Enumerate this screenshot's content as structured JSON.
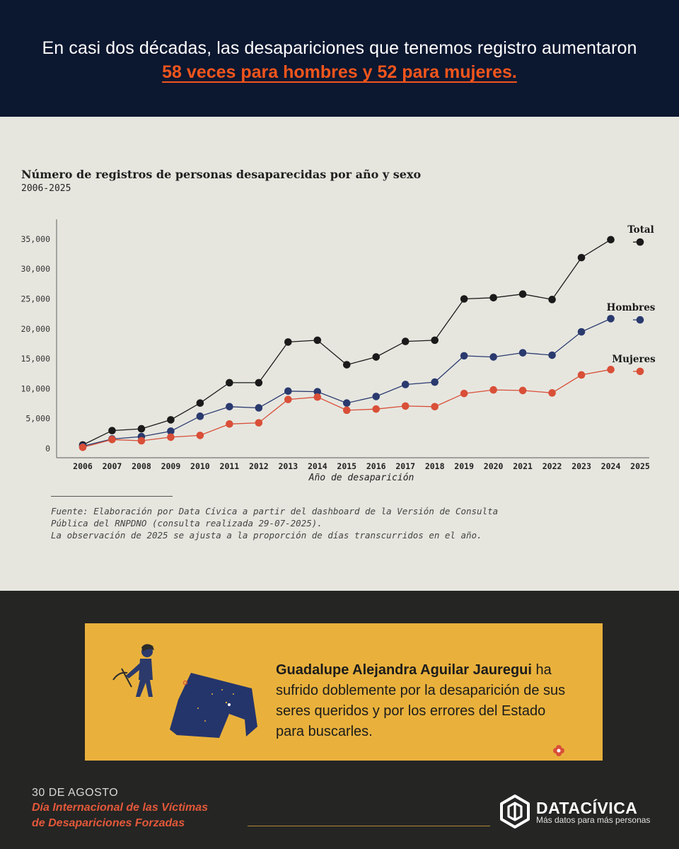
{
  "header": {
    "line1": "En casi dos décadas, las desapariciones que tenemos registro aumentaron",
    "line2": "58 veces para hombres y 52 para mujeres."
  },
  "chart_data": {
    "type": "line",
    "title": "Número de registros de personas desaparecidas por año y sexo",
    "subtitle": "2006-2025",
    "xlabel": "Año de desaparición",
    "ylabel": "",
    "ylim": [
      0,
      37000
    ],
    "yticks": [
      "0",
      "5,000",
      "10,000",
      "15,000",
      "20,000",
      "25,000",
      "30,000",
      "35,000"
    ],
    "ytick_values": [
      0,
      5000,
      10000,
      15000,
      20000,
      25000,
      30000,
      35000
    ],
    "grid": false,
    "x": [
      2006,
      2007,
      2008,
      2009,
      2010,
      2011,
      2012,
      2013,
      2014,
      2015,
      2016,
      2017,
      2018,
      2019,
      2020,
      2021,
      2022,
      2023,
      2024,
      2025
    ],
    "series": [
      {
        "name": "Total",
        "color": "#1a1a1a",
        "values": [
          600,
          3000,
          3300,
          4800,
          7600,
          11000,
          11000,
          17800,
          18100,
          14000,
          15300,
          17900,
          18100,
          25000,
          25200,
          25800,
          24900,
          31900,
          34900,
          34500
        ]
      },
      {
        "name": "Hombres",
        "color": "#2a3a6e",
        "values": [
          400,
          1600,
          2000,
          2900,
          5400,
          7000,
          6800,
          9600,
          9500,
          7600,
          8700,
          10700,
          11100,
          15500,
          15300,
          16000,
          15600,
          19500,
          21700,
          21500
        ]
      },
      {
        "name": "Mujeres",
        "color": "#d94f38",
        "values": [
          200,
          1500,
          1300,
          1900,
          2200,
          4100,
          4300,
          8200,
          8600,
          6400,
          6600,
          7100,
          7000,
          9200,
          9800,
          9700,
          9300,
          12300,
          13200,
          12900
        ]
      }
    ]
  },
  "source": {
    "line1": "Fuente: Elaboración por Data Cívica a partir del dashboard de la Versión de Consulta",
    "line2": "Pública del RNPDNO (consulta realizada 29-07-2025).",
    "line3": "La observación de 2025 se ajusta a la proporción de días transcurridos en el año."
  },
  "card": {
    "name": "Guadalupe Alejandra Aguilar Jauregui",
    "text": " ha sufrido doblemente por la desaparición de sus seres queridos y por los errores del Estado para buscarles."
  },
  "footer": {
    "date": "30 DE AGOSTO",
    "event_line1": "Día Internacional de las Víctimas",
    "event_line2": "de Desapariciones Forzadas",
    "brand_name": "DATACÍVICA",
    "brand_tagline": "Más datos para más personas",
    "logo_icon": "datacivica-logo-icon"
  }
}
